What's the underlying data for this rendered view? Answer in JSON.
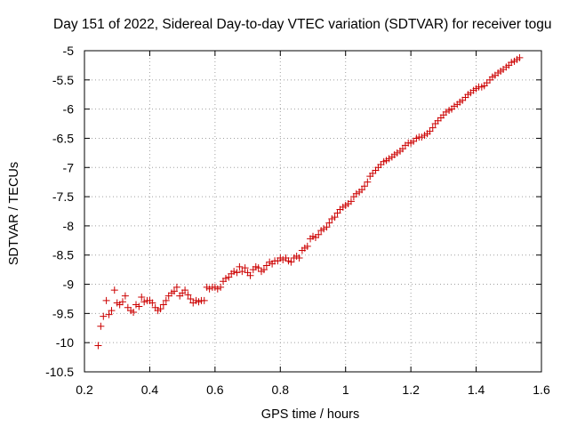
{
  "chart_data": {
    "type": "scatter",
    "title": "Day 151 of 2022, Sidereal Day-to-day VTEC variation (SDTVAR) for receiver togu",
    "xlabel": "GPS time / hours",
    "ylabel": "SDTVAR / TECUs",
    "xlim": [
      0.2,
      1.6
    ],
    "ylim": [
      -10.5,
      -5
    ],
    "xticks": [
      0.2,
      0.4,
      0.6,
      0.8,
      1.0,
      1.2,
      1.4,
      1.6
    ],
    "xtick_labels": [
      "0.2",
      "0.4",
      "0.6",
      "0.8",
      "1",
      "1.2",
      "1.4",
      "1.6"
    ],
    "yticks": [
      -10.5,
      -10,
      -9.5,
      -9,
      -8.5,
      -8,
      -7.5,
      -7,
      -6.5,
      -6,
      -5.5,
      -5
    ],
    "ytick_labels": [
      "-10.5",
      "-10",
      "-9.5",
      "-9",
      "-8.5",
      "-8",
      "-7.5",
      "-7",
      "-6.5",
      "-6",
      "-5.5",
      "-5"
    ],
    "grid": true,
    "marker": "+",
    "series": [
      {
        "color": "#cc0000",
        "points": [
          [
            0.242,
            -10.05
          ],
          [
            0.25,
            -9.72
          ],
          [
            0.258,
            -9.55
          ],
          [
            0.267,
            -9.28
          ],
          [
            0.275,
            -9.52
          ],
          [
            0.283,
            -9.45
          ],
          [
            0.292,
            -9.1
          ],
          [
            0.3,
            -9.32
          ],
          [
            0.308,
            -9.35
          ],
          [
            0.317,
            -9.3
          ],
          [
            0.325,
            -9.2
          ],
          [
            0.333,
            -9.4
          ],
          [
            0.342,
            -9.45
          ],
          [
            0.35,
            -9.48
          ],
          [
            0.358,
            -9.35
          ],
          [
            0.367,
            -9.38
          ],
          [
            0.375,
            -9.22
          ],
          [
            0.383,
            -9.3
          ],
          [
            0.392,
            -9.28
          ],
          [
            0.4,
            -9.28
          ],
          [
            0.408,
            -9.32
          ],
          [
            0.417,
            -9.4
          ],
          [
            0.425,
            -9.45
          ],
          [
            0.433,
            -9.42
          ],
          [
            0.442,
            -9.35
          ],
          [
            0.45,
            -9.28
          ],
          [
            0.458,
            -9.2
          ],
          [
            0.467,
            -9.15
          ],
          [
            0.475,
            -9.12
          ],
          [
            0.483,
            -9.05
          ],
          [
            0.492,
            -9.2
          ],
          [
            0.5,
            -9.15
          ],
          [
            0.508,
            -9.1
          ],
          [
            0.517,
            -9.18
          ],
          [
            0.525,
            -9.25
          ],
          [
            0.533,
            -9.32
          ],
          [
            0.542,
            -9.28
          ],
          [
            0.55,
            -9.3
          ],
          [
            0.558,
            -9.28
          ],
          [
            0.567,
            -9.28
          ],
          [
            0.575,
            -9.05
          ],
          [
            0.583,
            -9.08
          ],
          [
            0.592,
            -9.05
          ],
          [
            0.6,
            -9.05
          ],
          [
            0.608,
            -9.08
          ],
          [
            0.617,
            -9.05
          ],
          [
            0.625,
            -8.95
          ],
          [
            0.633,
            -8.9
          ],
          [
            0.642,
            -8.88
          ],
          [
            0.65,
            -8.82
          ],
          [
            0.658,
            -8.78
          ],
          [
            0.667,
            -8.8
          ],
          [
            0.675,
            -8.7
          ],
          [
            0.683,
            -8.78
          ],
          [
            0.692,
            -8.72
          ],
          [
            0.7,
            -8.8
          ],
          [
            0.708,
            -8.85
          ],
          [
            0.717,
            -8.75
          ],
          [
            0.725,
            -8.7
          ],
          [
            0.733,
            -8.72
          ],
          [
            0.742,
            -8.78
          ],
          [
            0.75,
            -8.75
          ],
          [
            0.758,
            -8.68
          ],
          [
            0.767,
            -8.62
          ],
          [
            0.775,
            -8.65
          ],
          [
            0.783,
            -8.6
          ],
          [
            0.792,
            -8.6
          ],
          [
            0.8,
            -8.55
          ],
          [
            0.808,
            -8.58
          ],
          [
            0.817,
            -8.55
          ],
          [
            0.825,
            -8.6
          ],
          [
            0.833,
            -8.62
          ],
          [
            0.842,
            -8.55
          ],
          [
            0.85,
            -8.52
          ],
          [
            0.858,
            -8.55
          ],
          [
            0.867,
            -8.42
          ],
          [
            0.875,
            -8.38
          ],
          [
            0.883,
            -8.35
          ],
          [
            0.892,
            -8.22
          ],
          [
            0.9,
            -8.18
          ],
          [
            0.908,
            -8.2
          ],
          [
            0.917,
            -8.15
          ],
          [
            0.925,
            -8.08
          ],
          [
            0.933,
            -8.05
          ],
          [
            0.942,
            -8.02
          ],
          [
            0.95,
            -7.95
          ],
          [
            0.958,
            -7.88
          ],
          [
            0.967,
            -7.85
          ],
          [
            0.975,
            -7.78
          ],
          [
            0.983,
            -7.72
          ],
          [
            0.992,
            -7.68
          ],
          [
            1.0,
            -7.65
          ],
          [
            1.008,
            -7.62
          ],
          [
            1.017,
            -7.58
          ],
          [
            1.025,
            -7.5
          ],
          [
            1.033,
            -7.45
          ],
          [
            1.042,
            -7.42
          ],
          [
            1.05,
            -7.38
          ],
          [
            1.058,
            -7.32
          ],
          [
            1.067,
            -7.25
          ],
          [
            1.075,
            -7.15
          ],
          [
            1.083,
            -7.1
          ],
          [
            1.092,
            -7.05
          ],
          [
            1.1,
            -7.0
          ],
          [
            1.108,
            -6.95
          ],
          [
            1.117,
            -6.9
          ],
          [
            1.125,
            -6.88
          ],
          [
            1.133,
            -6.85
          ],
          [
            1.142,
            -6.82
          ],
          [
            1.15,
            -6.78
          ],
          [
            1.158,
            -6.75
          ],
          [
            1.167,
            -6.72
          ],
          [
            1.175,
            -6.68
          ],
          [
            1.183,
            -6.62
          ],
          [
            1.192,
            -6.58
          ],
          [
            1.2,
            -6.58
          ],
          [
            1.208,
            -6.55
          ],
          [
            1.217,
            -6.5
          ],
          [
            1.225,
            -6.48
          ],
          [
            1.233,
            -6.48
          ],
          [
            1.242,
            -6.45
          ],
          [
            1.25,
            -6.42
          ],
          [
            1.258,
            -6.38
          ],
          [
            1.267,
            -6.32
          ],
          [
            1.275,
            -6.25
          ],
          [
            1.283,
            -6.2
          ],
          [
            1.292,
            -6.15
          ],
          [
            1.3,
            -6.1
          ],
          [
            1.308,
            -6.05
          ],
          [
            1.317,
            -6.02
          ],
          [
            1.325,
            -6.0
          ],
          [
            1.333,
            -5.95
          ],
          [
            1.342,
            -5.92
          ],
          [
            1.35,
            -5.88
          ],
          [
            1.358,
            -5.85
          ],
          [
            1.367,
            -5.8
          ],
          [
            1.375,
            -5.75
          ],
          [
            1.383,
            -5.72
          ],
          [
            1.392,
            -5.68
          ],
          [
            1.4,
            -5.65
          ],
          [
            1.408,
            -5.62
          ],
          [
            1.417,
            -5.62
          ],
          [
            1.425,
            -5.6
          ],
          [
            1.433,
            -5.55
          ],
          [
            1.442,
            -5.5
          ],
          [
            1.45,
            -5.45
          ],
          [
            1.458,
            -5.42
          ],
          [
            1.467,
            -5.38
          ],
          [
            1.475,
            -5.35
          ],
          [
            1.483,
            -5.32
          ],
          [
            1.492,
            -5.28
          ],
          [
            1.5,
            -5.25
          ],
          [
            1.508,
            -5.2
          ],
          [
            1.517,
            -5.18
          ],
          [
            1.525,
            -5.15
          ],
          [
            1.533,
            -5.12
          ]
        ]
      }
    ]
  }
}
